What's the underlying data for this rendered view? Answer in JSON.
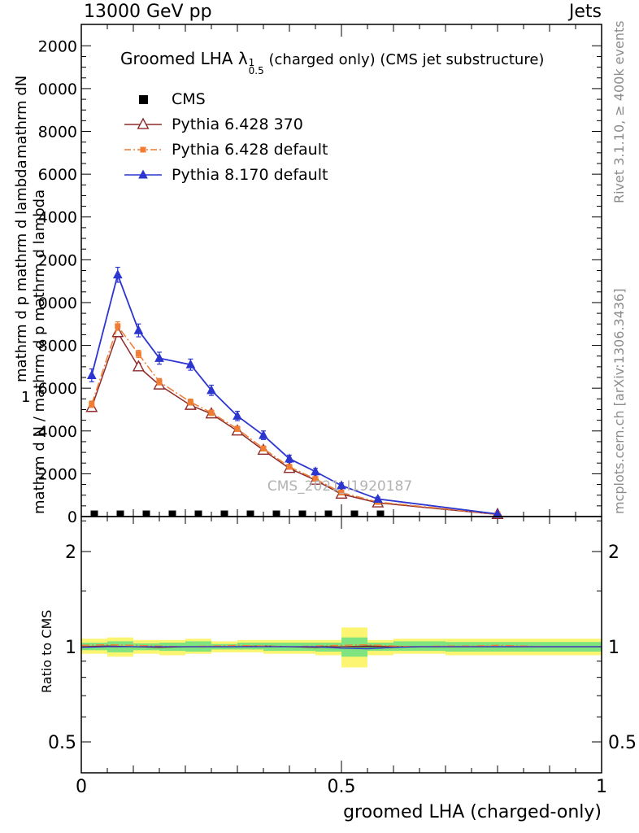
{
  "header": {
    "left": "13000 GeV pp",
    "right": "Jets"
  },
  "title": {
    "prefix": "Groomed LHA ",
    "lambda": "λ",
    "sup": "1",
    "sub": "0.5",
    "suffix": " (charged only) (CMS jet substructure)"
  },
  "legend": {
    "items": [
      {
        "label": "CMS",
        "series": 0
      },
      {
        "label": "Pythia 6.428 370",
        "series": 1
      },
      {
        "label": "Pythia 6.428 default",
        "series": 2
      },
      {
        "label": "Pythia 8.170 default",
        "series": 3
      }
    ]
  },
  "watermark": {
    "text": "CMS_2021_I1920187"
  },
  "side": {
    "rivet": "Rivet 3.1.10, ≥ 400k events",
    "mcplots": "mcplots.cern.ch [arXiv:1306.3436]"
  },
  "left_axis": {
    "a": "mathrm dN",
    "b": "mathrm d p mathrm d lambda",
    "c": "1",
    "d": "mathrm d N / mathrm d p mathrm d lambda"
  },
  "ratio": {
    "ylabel": "Ratio to CMS"
  },
  "axes": {
    "xlabel": "groomed LHA (charged-only)"
  },
  "chart_data": {
    "type": "line",
    "title": "Groomed LHA λ^1_0.5 (charged only) (CMS jet substructure)",
    "xlabel": "groomed LHA (charged-only)",
    "ylabel": "1/N dN/(d p d lambda)",
    "xlim": [
      0,
      1
    ],
    "ylim": [
      0,
      23000
    ],
    "grid": false,
    "legend_position": "top-left",
    "x_ticks": {
      "major": [
        0,
        0.5,
        1
      ],
      "labels": [
        "0",
        "0.5",
        "1"
      ]
    },
    "y_ticks": {
      "major_step": 2000,
      "minor_step": 500,
      "max": 22000
    },
    "y_tick_labels": [
      "0",
      "2000",
      "4000",
      "6000",
      "8000",
      "0000",
      "2000",
      "4000",
      "6000",
      "8000",
      "0000",
      "2000"
    ],
    "colors": {
      "band_yellow": "#fbf571",
      "band_green": "#7fe47f"
    },
    "series": [
      {
        "name": "CMS",
        "color": "#000000",
        "marker": "square",
        "line": "none",
        "x": [
          0.025,
          0.075,
          0.125,
          0.175,
          0.225,
          0.275,
          0.325,
          0.375,
          0.425,
          0.475,
          0.525,
          0.575
        ],
        "y": [
          150,
          150,
          150,
          150,
          150,
          150,
          150,
          150,
          150,
          150,
          150,
          150
        ]
      },
      {
        "name": "Pythia 6.428 370",
        "color": "#8e2a2a",
        "marker": "triangle-open",
        "line": "solid",
        "x": [
          0.02,
          0.07,
          0.11,
          0.15,
          0.21,
          0.25,
          0.3,
          0.35,
          0.4,
          0.45,
          0.5,
          0.57,
          0.8
        ],
        "y": [
          5100,
          8600,
          7000,
          6150,
          5200,
          4800,
          4000,
          3100,
          2250,
          1700,
          1050,
          640,
          100
        ],
        "err": [
          150,
          200,
          170,
          150,
          140,
          130,
          120,
          110,
          90,
          80,
          60,
          50,
          30
        ]
      },
      {
        "name": "Pythia 6.428 default",
        "color": "#ef7d33",
        "marker": "square-filled",
        "line": "dashdot",
        "x": [
          0.02,
          0.07,
          0.11,
          0.15,
          0.21,
          0.25,
          0.3,
          0.35,
          0.4,
          0.45,
          0.5,
          0.57,
          0.8
        ],
        "y": [
          5250,
          8900,
          7600,
          6300,
          5350,
          4850,
          4100,
          3180,
          2320,
          1760,
          1120,
          680,
          110
        ],
        "err": [
          150,
          200,
          170,
          150,
          140,
          130,
          120,
          110,
          90,
          80,
          60,
          50,
          30
        ]
      },
      {
        "name": "Pythia 8.170 default",
        "color": "#2c35d0",
        "marker": "triangle-filled",
        "line": "solid",
        "x": [
          0.02,
          0.07,
          0.11,
          0.15,
          0.21,
          0.25,
          0.3,
          0.35,
          0.4,
          0.45,
          0.5,
          0.57,
          0.8
        ],
        "y": [
          6600,
          11300,
          8700,
          7400,
          7100,
          5900,
          4700,
          3800,
          2700,
          2100,
          1450,
          820,
          120
        ],
        "err": [
          300,
          350,
          300,
          280,
          260,
          240,
          220,
          200,
          170,
          150,
          120,
          90,
          40
        ]
      }
    ],
    "ratio_panel": {
      "ylog": true,
      "ylim": [
        0.4,
        2.58
      ],
      "yticks": [
        0.5,
        1,
        2
      ],
      "ytick_labels": [
        "0.5",
        "1",
        "2"
      ],
      "minor_ticks": [
        0.6,
        0.7,
        0.8,
        0.9,
        1.5,
        2.5
      ],
      "x": [
        0,
        0.05,
        0.1,
        0.15,
        0.2,
        0.25,
        0.3,
        0.35,
        0.4,
        0.45,
        0.5,
        0.55,
        0.6,
        0.65,
        0.7,
        0.75,
        0.8,
        0.85,
        0.9,
        0.95,
        1
      ],
      "bands": [
        [
          0,
          0.05,
          0.95,
          1.06,
          0.975,
          1.03
        ],
        [
          0.05,
          0.1,
          0.93,
          1.07,
          0.96,
          1.04
        ],
        [
          0.1,
          0.15,
          0.95,
          1.05,
          0.975,
          1.025
        ],
        [
          0.15,
          0.2,
          0.94,
          1.05,
          0.97,
          1.03
        ],
        [
          0.2,
          0.25,
          0.95,
          1.06,
          0.965,
          1.04
        ],
        [
          0.25,
          0.3,
          0.96,
          1.04,
          0.98,
          1.02
        ],
        [
          0.3,
          0.35,
          0.96,
          1.05,
          0.98,
          1.03
        ],
        [
          0.35,
          0.4,
          0.95,
          1.05,
          0.97,
          1.03
        ],
        [
          0.4,
          0.45,
          0.95,
          1.05,
          0.97,
          1.03
        ],
        [
          0.45,
          0.5,
          0.94,
          1.05,
          0.965,
          1.03
        ],
        [
          0.5,
          0.55,
          0.86,
          1.15,
          0.93,
          1.07
        ],
        [
          0.55,
          0.6,
          0.94,
          1.05,
          0.97,
          1.03
        ],
        [
          0.6,
          0.7,
          0.95,
          1.06,
          0.97,
          1.04
        ],
        [
          0.7,
          1,
          0.94,
          1.06,
          0.965,
          1.035
        ]
      ],
      "lines": [
        {
          "color": "#8e2a2a",
          "dash": "",
          "y": [
            1,
            1.005,
            1,
            0.995,
            1,
            1,
            1,
            1.005,
            1,
            0.995,
            1,
            1.005,
            1,
            1,
            1,
            1,
            1,
            1,
            1,
            1,
            1
          ]
        },
        {
          "color": "#ef7d33",
          "dash": "10 3 2 3",
          "y": [
            1.01,
            1.015,
            1.01,
            1.005,
            1,
            1.005,
            1.01,
            1.005,
            1,
            1.005,
            1.01,
            1.015,
            1.005,
            1,
            1.005,
            1.005,
            1.01,
            1.005,
            1,
            1,
            1
          ]
        },
        {
          "color": "#2c35d0",
          "dash": "",
          "y": [
            0.995,
            1,
            1,
            1,
            1,
            1,
            1,
            1,
            1,
            1,
            0.99,
            0.985,
            0.995,
            1,
            1,
            1,
            1,
            1,
            1,
            1,
            1
          ]
        }
      ]
    }
  }
}
